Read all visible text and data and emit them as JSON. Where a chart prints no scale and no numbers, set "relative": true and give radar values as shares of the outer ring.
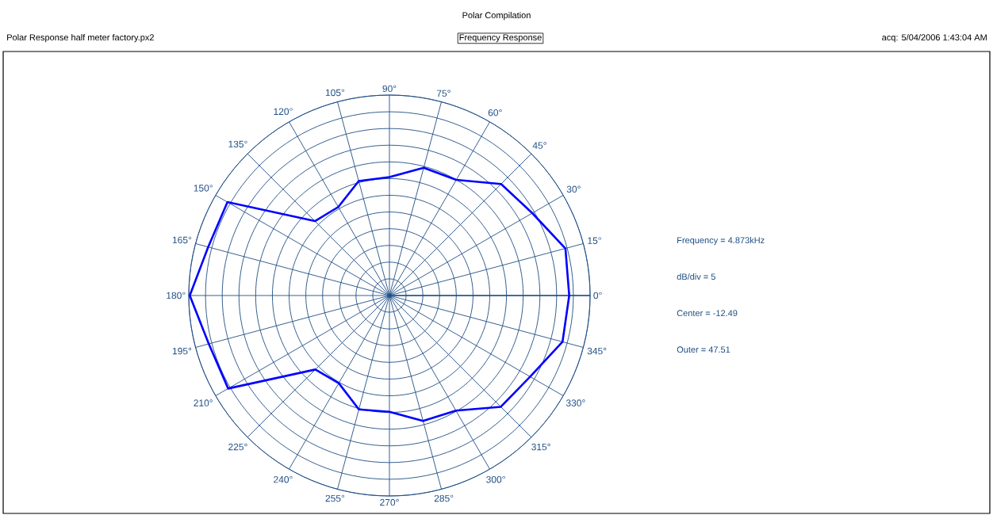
{
  "chart_data": {
    "type": "radar",
    "title": "Polar Compilation",
    "subtitle": "Frequency Response",
    "categories": [
      "90°",
      "75°",
      "60°",
      "45°",
      "30°",
      "15°",
      "0°",
      "345°",
      "330°",
      "315°",
      "300°",
      "285°",
      "270°",
      "255°",
      "240°",
      "225°",
      "210°",
      "195°",
      "180°",
      "165°",
      "150°",
      "135°",
      "120°",
      "105°"
    ],
    "relative": true,
    "series": [
      {
        "color": "#0000ff",
        "values": [
          0.591,
          0.66,
          0.666,
          0.787,
          0.822,
          0.908,
          0.896,
          0.893,
          0.81,
          0.785,
          0.663,
          0.648,
          0.58,
          0.588,
          0.505,
          0.522,
          0.928,
          0.932,
          0.995,
          0.935,
          0.932,
          0.525,
          0.51,
          0.591
        ]
      }
    ],
    "tick_labels": "x",
    "grid": true,
    "annotations": [
      "Polar Response half meter factory.px2",
      "acq: 5/04/2006 1:43:04 AM",
      "Frequency = 4.873kHz",
      "dB/div = 5",
      "Center = -12.49",
      "Outer = 47.51"
    ]
  }
}
